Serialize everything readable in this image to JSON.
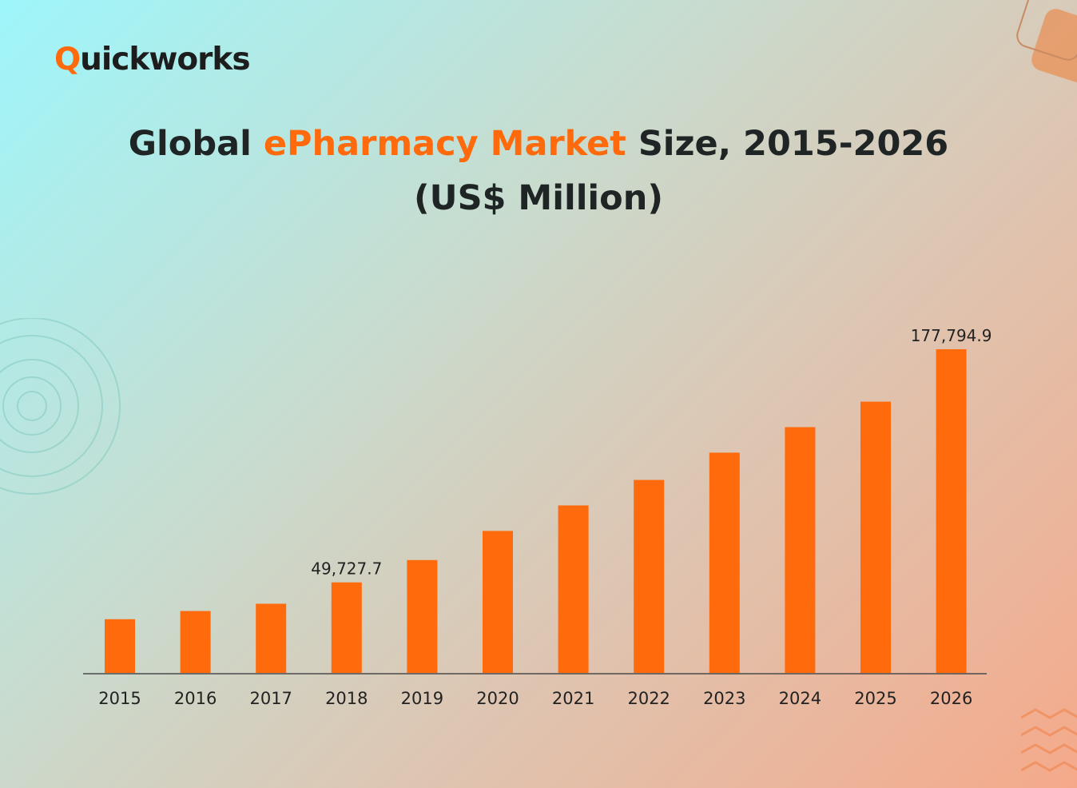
{
  "brand": {
    "name_rest": "uickworks",
    "name_initial": "Q"
  },
  "title": {
    "part1": "Global ",
    "highlight": "ePharmacy Market",
    "part2": " Size, 2015-2026",
    "line2": "(US$ Million)"
  },
  "colors": {
    "bar": "#ff6a0d",
    "accent": "#ff6a0d",
    "text": "#1f2424"
  },
  "chart_data": {
    "type": "bar",
    "categories": [
      "2015",
      "2016",
      "2017",
      "2018",
      "2019",
      "2020",
      "2021",
      "2022",
      "2023",
      "2024",
      "2025",
      "2026"
    ],
    "values": [
      29500,
      34000,
      38000,
      49727.7,
      62000,
      78000,
      92000,
      106000,
      121000,
      135000,
      149000,
      177794.9
    ],
    "data_labels": [
      {
        "category": "2018",
        "text": "49,727.7"
      },
      {
        "category": "2026",
        "text": "177,794.9"
      }
    ],
    "ylim": [
      0,
      180000
    ],
    "grid": false,
    "title": "Global ePharmacy Market Size, 2015-2026 (US$ Million)"
  }
}
